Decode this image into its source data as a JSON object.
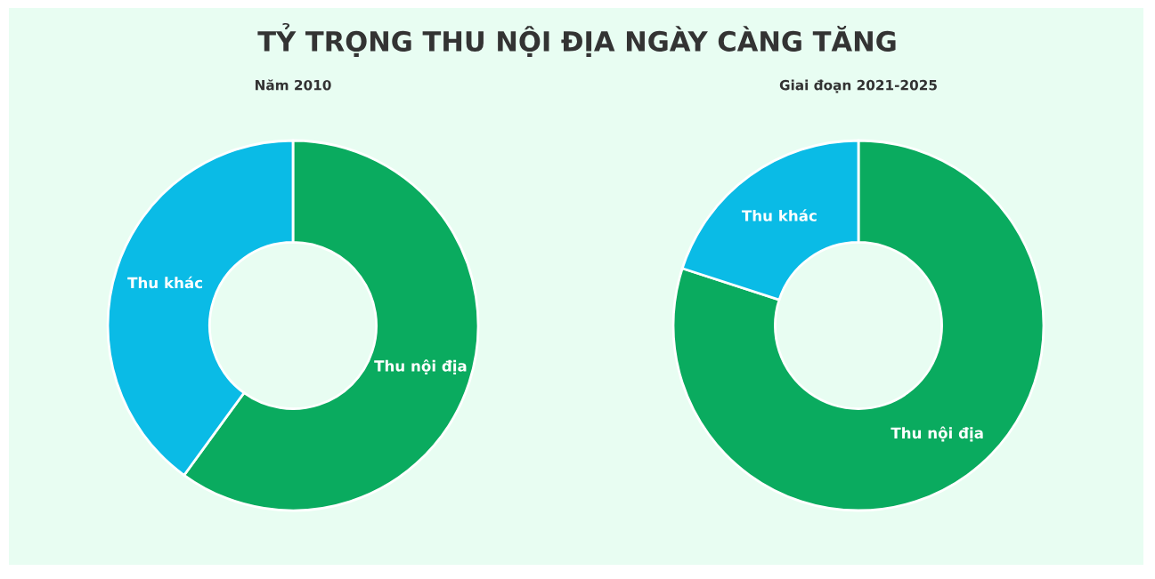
{
  "chart_data": [
    {
      "type": "donut",
      "title": "TỶ TRỌNG THU NỘI ĐỊA NGÀY CÀNG TĂNG",
      "subtitle": "Năm 2010",
      "categories": [
        "Thu nội địa",
        "Thu khác"
      ],
      "values": [
        60,
        40
      ],
      "colors": [
        "#0aab5f",
        "#0abbe6"
      ]
    },
    {
      "type": "donut",
      "subtitle": "Giai đoạn 2021-2025",
      "categories": [
        "Thu nội địa",
        "Thu khác"
      ],
      "values": [
        80,
        20
      ],
      "colors": [
        "#0aab5f",
        "#0abbe6"
      ]
    }
  ]
}
